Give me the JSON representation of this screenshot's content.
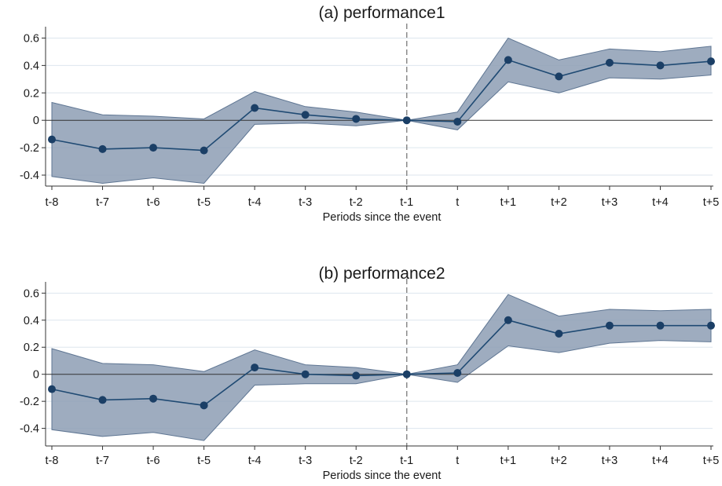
{
  "colors": {
    "band": "#8d9db4",
    "band_edge": "#5f7693",
    "line": "#1f4a73",
    "marker": "#1b3f66",
    "grid": "#dde6ee",
    "zero_line": "#333333",
    "event_line": "#7a7a7a"
  },
  "chart_data": [
    {
      "type": "line",
      "title": "(a) performance1",
      "xlabel": "Periods since the event",
      "ylabel": "",
      "categories": [
        "t-8",
        "t-7",
        "t-6",
        "t-5",
        "t-4",
        "t-3",
        "t-2",
        "t-1",
        "t",
        "t+1",
        "t+2",
        "t+3",
        "t+4",
        "t+5"
      ],
      "yticks": [
        "-0.4",
        "-0.2",
        "0",
        "0.2",
        "0.4",
        "0.6"
      ],
      "ylim": [
        -0.48,
        0.66
      ],
      "event_category": "t-1",
      "grid": true,
      "values": [
        -0.14,
        -0.21,
        -0.2,
        -0.22,
        0.09,
        0.04,
        0.01,
        0.0,
        -0.01,
        0.44,
        0.32,
        0.42,
        0.4,
        0.43
      ],
      "ci_upper": [
        0.13,
        0.04,
        0.03,
        0.01,
        0.21,
        0.1,
        0.06,
        0.0,
        0.06,
        0.6,
        0.44,
        0.52,
        0.5,
        0.54
      ],
      "ci_lower": [
        -0.41,
        -0.46,
        -0.42,
        -0.46,
        -0.03,
        -0.02,
        -0.04,
        0.0,
        -0.07,
        0.28,
        0.2,
        0.31,
        0.3,
        0.33
      ]
    },
    {
      "type": "line",
      "title": "(b) performance2",
      "xlabel": "Periods since the event",
      "ylabel": "",
      "categories": [
        "t-8",
        "t-7",
        "t-6",
        "t-5",
        "t-4",
        "t-3",
        "t-2",
        "t-1",
        "t",
        "t+1",
        "t+2",
        "t+3",
        "t+4",
        "t+5"
      ],
      "yticks": [
        "-0.4",
        "-0.2",
        "0",
        "0.2",
        "0.4",
        "0.6"
      ],
      "ylim": [
        -0.53,
        0.66
      ],
      "event_category": "t-1",
      "grid": true,
      "values": [
        -0.11,
        -0.19,
        -0.18,
        -0.23,
        0.05,
        0.0,
        -0.01,
        0.0,
        0.01,
        0.4,
        0.3,
        0.36,
        0.36,
        0.36
      ],
      "ci_upper": [
        0.19,
        0.08,
        0.07,
        0.02,
        0.18,
        0.07,
        0.05,
        0.0,
        0.07,
        0.59,
        0.43,
        0.48,
        0.47,
        0.48
      ],
      "ci_lower": [
        -0.41,
        -0.46,
        -0.43,
        -0.49,
        -0.08,
        -0.07,
        -0.07,
        0.0,
        -0.06,
        0.21,
        0.16,
        0.23,
        0.25,
        0.24
      ]
    }
  ]
}
